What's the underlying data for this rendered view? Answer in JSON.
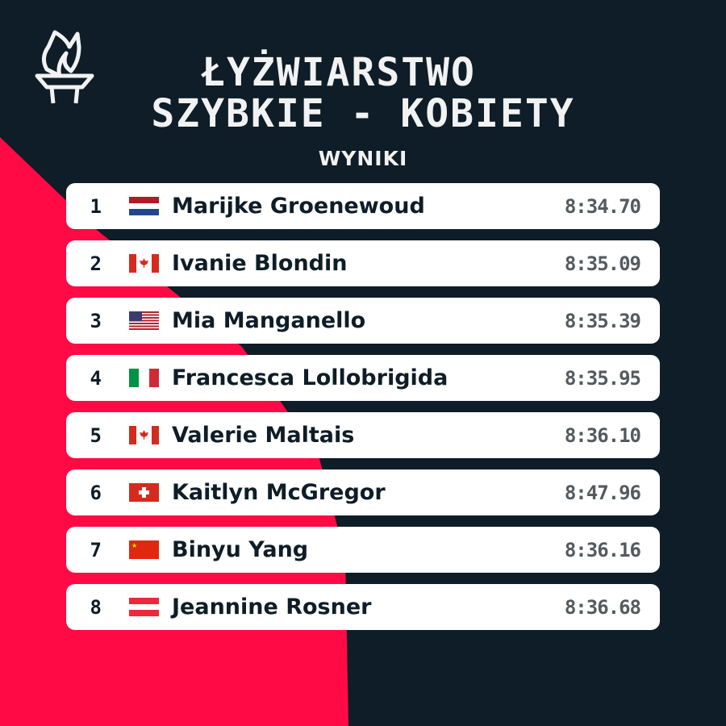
{
  "colors": {
    "background": "#0e1d27",
    "accent": "#ff0a45",
    "card": "#ffffff"
  },
  "header": {
    "logo_icon": "torch-icon",
    "title_line1": "ŁYŻWIARSTWO",
    "title_line2": "SZYBKIE - KOBIETY",
    "subtitle": "WYNIKI"
  },
  "results": [
    {
      "rank": "1",
      "flag": "netherlands",
      "name": "Marijke Groenewoud",
      "time": "8:34.70"
    },
    {
      "rank": "2",
      "flag": "canada",
      "name": "Ivanie Blondin",
      "time": "8:35.09"
    },
    {
      "rank": "3",
      "flag": "usa",
      "name": "Mia Manganello",
      "time": "8:35.39"
    },
    {
      "rank": "4",
      "flag": "italy",
      "name": "Francesca Lollobrigida",
      "time": "8:35.95"
    },
    {
      "rank": "5",
      "flag": "canada",
      "name": "Valerie Maltais",
      "time": "8:36.10"
    },
    {
      "rank": "6",
      "flag": "switzerland",
      "name": "Kaitlyn McGregor",
      "time": "8:47.96"
    },
    {
      "rank": "7",
      "flag": "china",
      "name": "Binyu Yang",
      "time": "8:36.16"
    },
    {
      "rank": "8",
      "flag": "austria",
      "name": "Jeannine Rosner",
      "time": "8:36.68"
    }
  ]
}
